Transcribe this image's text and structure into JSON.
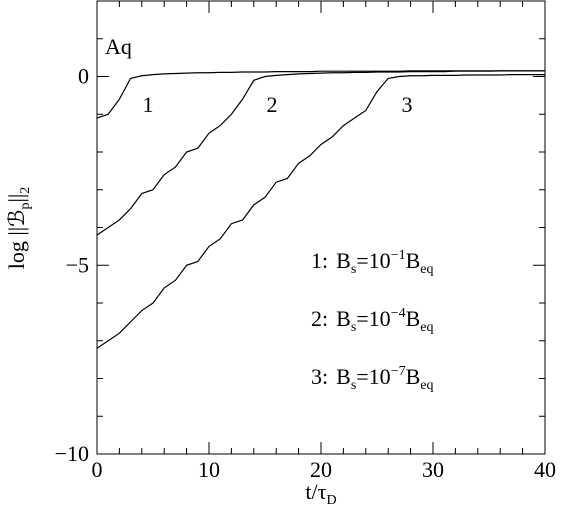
{
  "chart_data": {
    "type": "line",
    "annotation": "Aq",
    "ylabel": {
      "main": "log ||ℬ",
      "sub1": "p",
      "mid": "||",
      "sub2": "2"
    },
    "xlabel": {
      "main": "t/τ",
      "sub": "D"
    },
    "x": [
      0,
      1,
      2,
      3,
      4,
      5,
      6,
      7,
      8,
      9,
      10,
      11,
      12,
      13,
      14,
      15,
      16,
      17,
      18,
      19,
      20,
      21,
      22,
      23,
      24,
      25,
      26,
      27,
      28,
      29,
      30,
      31,
      32,
      33,
      34,
      35,
      36,
      37,
      38,
      39,
      40
    ],
    "series": [
      {
        "name": "1",
        "color": "#000000",
        "values": [
          -1.1,
          -1.0,
          -0.6,
          -0.05,
          0.02,
          0.05,
          0.07,
          0.08,
          0.09,
          0.1,
          0.1,
          0.11,
          0.11,
          0.12,
          0.12,
          0.12,
          0.13,
          0.13,
          0.13,
          0.13,
          0.14,
          0.14,
          0.14,
          0.14,
          0.14,
          0.14,
          0.14,
          0.14,
          0.15,
          0.15,
          0.15,
          0.15,
          0.15,
          0.15,
          0.15,
          0.15,
          0.15,
          0.15,
          0.15,
          0.15,
          0.15
        ]
      },
      {
        "name": "2",
        "color": "#000000",
        "values": [
          -4.2,
          -4.0,
          -3.8,
          -3.5,
          -3.1,
          -3.0,
          -2.6,
          -2.4,
          -2.0,
          -1.9,
          -1.5,
          -1.3,
          -1.0,
          -0.6,
          -0.1,
          0.0,
          0.03,
          0.05,
          0.07,
          0.08,
          0.09,
          0.1,
          0.1,
          0.11,
          0.11,
          0.12,
          0.12,
          0.12,
          0.13,
          0.13,
          0.13,
          0.13,
          0.14,
          0.14,
          0.14,
          0.14,
          0.15,
          0.15,
          0.15,
          0.15,
          0.15
        ]
      },
      {
        "name": "3",
        "color": "#000000",
        "values": [
          -7.2,
          -7.0,
          -6.8,
          -6.5,
          -6.2,
          -6.0,
          -5.6,
          -5.4,
          -5.0,
          -4.9,
          -4.5,
          -4.3,
          -3.9,
          -3.8,
          -3.4,
          -3.2,
          -2.8,
          -2.7,
          -2.3,
          -2.1,
          -1.8,
          -1.6,
          -1.3,
          -1.1,
          -0.9,
          -0.4,
          -0.05,
          0.0,
          0.02,
          0.02,
          0.03,
          0.03,
          0.03,
          0.04,
          0.04,
          0.04,
          0.04,
          0.05,
          0.05,
          0.05,
          0.05
        ]
      }
    ],
    "legend": [
      {
        "label": "1:",
        "b": "B",
        "b_sub": "s",
        "eq": "=10",
        "exp": "−1",
        "tail": "B",
        "tail_sub": "eq"
      },
      {
        "label": "2:",
        "b": "B",
        "b_sub": "s",
        "eq": "=10",
        "exp": "−4",
        "tail": "B",
        "tail_sub": "eq"
      },
      {
        "label": "3:",
        "b": "B",
        "b_sub": "s",
        "eq": "=10",
        "exp": "−7",
        "tail": "B",
        "tail_sub": "eq"
      }
    ],
    "xlim": [
      0,
      40
    ],
    "ylim": [
      -10,
      2
    ],
    "xticks": [
      0,
      10,
      20,
      30,
      40
    ],
    "yticks": [
      {
        "value": -10,
        "label": "−10"
      },
      {
        "value": -5,
        "label": "−5"
      },
      0
    ],
    "xminorticks": [
      2,
      4,
      6,
      8,
      12,
      14,
      16,
      18,
      22,
      24,
      26,
      28,
      32,
      34,
      36,
      38
    ],
    "yminorticks": [
      -9,
      -8,
      -7,
      -6,
      -4,
      -3,
      -2,
      -1,
      1
    ]
  }
}
